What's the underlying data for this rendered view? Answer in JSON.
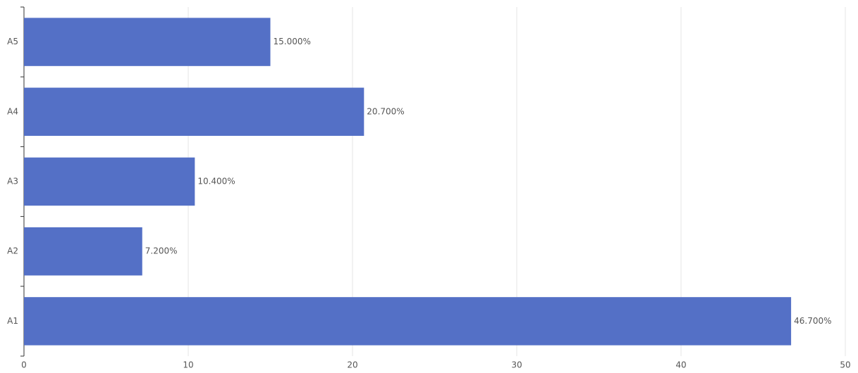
{
  "chart_data": {
    "type": "bar",
    "orientation": "horizontal",
    "categories": [
      "A1",
      "A2",
      "A3",
      "A4",
      "A5"
    ],
    "values": [
      46.7,
      7.2,
      10.4,
      20.7,
      15.0
    ],
    "value_labels": [
      "46.700%",
      "7.200%",
      "10.400%",
      "20.700%",
      "15.000%"
    ],
    "color": "#5470c6",
    "xlim": [
      0,
      50
    ],
    "xticks": [
      0,
      10,
      20,
      30,
      40,
      50
    ],
    "grid": true
  }
}
